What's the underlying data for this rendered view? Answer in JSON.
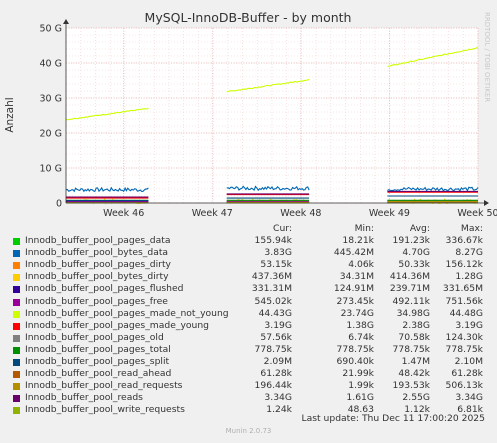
{
  "chart_data": {
    "type": "line",
    "title": "MySQL-InnoDB-Buffer - by month",
    "ylabel": "Anzahl",
    "watermark": "RRDTOOL / TOBI OETIKER",
    "ylim": [
      0,
      50
    ],
    "yticks": [
      {
        "value": 0,
        "label": "0"
      },
      {
        "value": 10,
        "label": "10 G"
      },
      {
        "value": 20,
        "label": "20 G"
      },
      {
        "value": 30,
        "label": "30 G"
      },
      {
        "value": 40,
        "label": "40 G"
      },
      {
        "value": 50,
        "label": "50 G"
      }
    ],
    "xticks": [
      "Week 46",
      "Week 47",
      "Week 48",
      "Week 49",
      "Week 50"
    ],
    "grid": true,
    "segments": [
      {
        "start": 0.0,
        "end": 0.2
      },
      {
        "start": 0.39,
        "end": 0.59
      },
      {
        "start": 0.78,
        "end": 1.0
      }
    ],
    "series": [
      {
        "name": "Innodb_buffer_pool_pages_data",
        "color": "#00cc00",
        "approx_gb": [
          0.16,
          0.16,
          0.16
        ]
      },
      {
        "name": "Innodb_buffer_pool_bytes_data",
        "color": "#0066b3",
        "approx_gb": [
          3.8,
          4.2,
          4.0
        ],
        "noisy": true
      },
      {
        "name": "Innodb_buffer_pool_pages_dirty",
        "color": "#ff8000",
        "approx_gb": [
          0.05,
          0.05,
          0.05
        ]
      },
      {
        "name": "Innodb_buffer_pool_bytes_dirty",
        "color": "#ffcc00",
        "approx_gb": [
          0.4,
          0.45,
          0.45
        ],
        "noisy": true
      },
      {
        "name": "Innodb_buffer_pool_pages_flushed",
        "color": "#330099",
        "approx_gb": [
          0.25,
          0.28,
          0.33
        ]
      },
      {
        "name": "Innodb_buffer_pool_pages_free",
        "color": "#990099",
        "approx_gb": [
          0.5,
          0.5,
          0.5
        ]
      },
      {
        "name": "Innodb_buffer_pool_pages_made_not_young",
        "color": "#ccff00",
        "start_end_gb": [
          [
            23.8,
            27.0
          ],
          [
            31.8,
            35.2
          ],
          [
            39.0,
            44.4
          ]
        ]
      },
      {
        "name": "Innodb_buffer_pool_pages_made_young",
        "color": "#ff0000",
        "approx_gb": [
          1.4,
          2.4,
          3.1
        ]
      },
      {
        "name": "Innodb_buffer_pool_pages_old",
        "color": "#808080",
        "approx_gb": [
          0.06,
          0.07,
          0.07
        ]
      },
      {
        "name": "Innodb_buffer_pool_pages_total",
        "color": "#008f00",
        "approx_gb": [
          0.78,
          0.78,
          0.78
        ]
      },
      {
        "name": "Innodb_buffer_pool_pages_split",
        "color": "#00487d",
        "approx_gb": [
          0.7,
          1.4,
          2.0
        ]
      },
      {
        "name": "Innodb_buffer_pool_read_ahead",
        "color": "#b35a00",
        "approx_gb": [
          0.03,
          0.05,
          0.06
        ]
      },
      {
        "name": "Innodb_buffer_pool_read_requests",
        "color": "#b38f00",
        "approx_gb": [
          0.05,
          0.2,
          0.4
        ]
      },
      {
        "name": "Innodb_buffer_pool_reads",
        "color": "#6b006b",
        "approx_gb": [
          1.7,
          2.6,
          3.3
        ]
      },
      {
        "name": "Innodb_buffer_pool_write_requests",
        "color": "#8fb300",
        "approx_gb": [
          0.001,
          0.001,
          0.001
        ]
      }
    ]
  },
  "legend": {
    "headers": {
      "cur": "Cur:",
      "min": "Min:",
      "avg": "Avg:",
      "max": "Max:"
    },
    "rows": [
      {
        "name": "Innodb_buffer_pool_pages_data",
        "color": "#00cc00",
        "cur": "155.94k",
        "min": "18.21k",
        "avg": "191.23k",
        "max": "336.67k"
      },
      {
        "name": "Innodb_buffer_pool_bytes_data",
        "color": "#0066b3",
        "cur": "3.83G",
        "min": "445.42M",
        "avg": "4.70G",
        "max": "8.27G"
      },
      {
        "name": "Innodb_buffer_pool_pages_dirty",
        "color": "#ff8000",
        "cur": "53.15k",
        "min": "4.06k",
        "avg": "50.33k",
        "max": "156.12k"
      },
      {
        "name": "Innodb_buffer_pool_bytes_dirty",
        "color": "#ffcc00",
        "cur": "437.36M",
        "min": "34.31M",
        "avg": "414.36M",
        "max": "1.28G"
      },
      {
        "name": "Innodb_buffer_pool_pages_flushed",
        "color": "#330099",
        "cur": "331.31M",
        "min": "124.91M",
        "avg": "239.71M",
        "max": "331.65M"
      },
      {
        "name": "Innodb_buffer_pool_pages_free",
        "color": "#990099",
        "cur": "545.02k",
        "min": "273.45k",
        "avg": "492.11k",
        "max": "751.56k"
      },
      {
        "name": "Innodb_buffer_pool_pages_made_not_young",
        "color": "#ccff00",
        "cur": "44.43G",
        "min": "23.74G",
        "avg": "34.98G",
        "max": "44.48G"
      },
      {
        "name": "Innodb_buffer_pool_pages_made_young",
        "color": "#ff0000",
        "cur": "3.19G",
        "min": "1.38G",
        "avg": "2.38G",
        "max": "3.19G"
      },
      {
        "name": "Innodb_buffer_pool_pages_old",
        "color": "#808080",
        "cur": "57.56k",
        "min": "6.74k",
        "avg": "70.58k",
        "max": "124.30k"
      },
      {
        "name": "Innodb_buffer_pool_pages_total",
        "color": "#008f00",
        "cur": "778.75k",
        "min": "778.75k",
        "avg": "778.75k",
        "max": "778.75k"
      },
      {
        "name": "Innodb_buffer_pool_pages_split",
        "color": "#00487d",
        "cur": "2.09M",
        "min": "690.40k",
        "avg": "1.47M",
        "max": "2.10M"
      },
      {
        "name": "Innodb_buffer_pool_read_ahead",
        "color": "#b35a00",
        "cur": "61.28k",
        "min": "21.99k",
        "avg": "48.42k",
        "max": "61.28k"
      },
      {
        "name": "Innodb_buffer_pool_read_requests",
        "color": "#b38f00",
        "cur": "196.44k",
        "min": "1.99k",
        "avg": "193.53k",
        "max": "506.13k"
      },
      {
        "name": "Innodb_buffer_pool_reads",
        "color": "#6b006b",
        "cur": "3.34G",
        "min": "1.61G",
        "avg": "2.55G",
        "max": "3.34G"
      },
      {
        "name": "Innodb_buffer_pool_write_requests",
        "color": "#8fb300",
        "cur": "1.24k",
        "min": "48.63",
        "avg": "1.12k",
        "max": "6.81k"
      }
    ]
  },
  "footer": {
    "last_update": "Last update: Thu Dec 11 17:00:20 2025",
    "munin": "Munin 2.0.73"
  }
}
